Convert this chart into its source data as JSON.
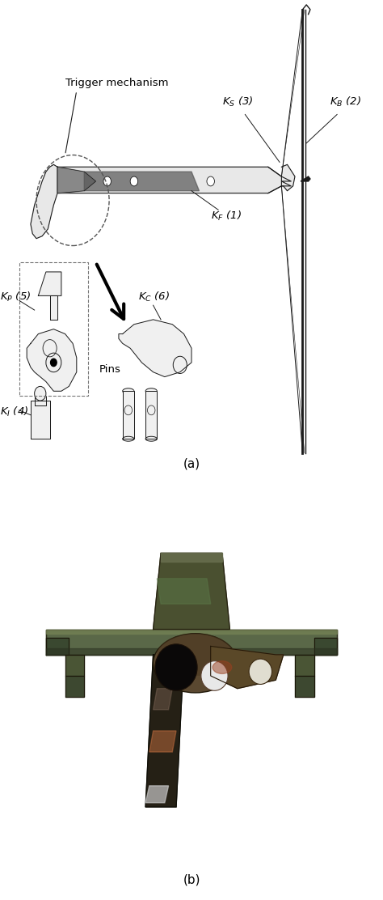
{
  "fig_width": 4.74,
  "fig_height": 11.12,
  "dpi": 100,
  "bg_color": "#ffffff",
  "panel_a_label": "(a)",
  "panel_b_label": "(b)",
  "labels": {
    "trigger_mechanism": "Trigger mechanism",
    "KS3": "$K_S$ (3)",
    "KB2": "$K_B$ (2)",
    "KF1": "$K_F$ (1)",
    "KP5": "$K_P$ (5)",
    "KC6": "$K_C$ (6)",
    "KI4": "$K_I$ (4)",
    "Pins": "Pins"
  },
  "label_fontsize": 9.5,
  "panel_label_fontsize": 11,
  "crossbow_color": "#1a1a1a",
  "stock_fill": "#e8e8e8",
  "component_fill": "#f0f0f0",
  "bronze_dark": "#4a4535",
  "bronze_mid": "#6b6245",
  "bronze_light": "#7a7050",
  "bronze_green": "#5a6848",
  "rust_orange": "#a0522d",
  "rust_light": "#c87040"
}
